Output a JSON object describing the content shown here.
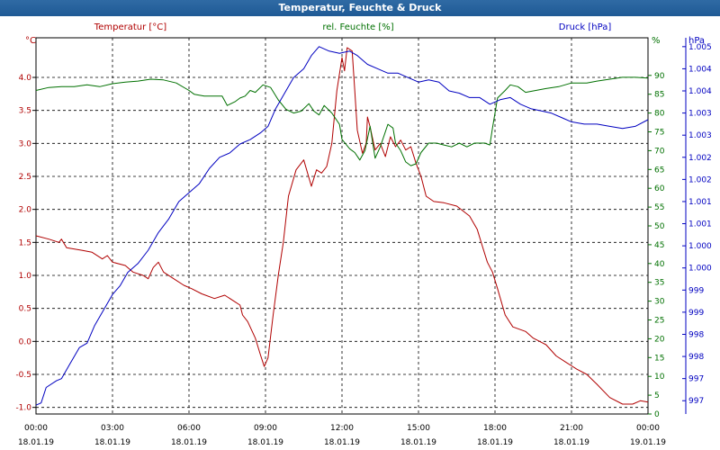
{
  "window_title": "Temperatur, Feuchte & Druck",
  "chart_data": {
    "type": "line",
    "title": "Temperatur, Feuchte & Druck",
    "colors": {
      "temp": "#b00000",
      "hum": "#007000",
      "press": "#0000c0",
      "grid": "#000000"
    },
    "axes": {
      "temp": {
        "label": "Temperatur [°C]",
        "unit": "°C",
        "range": [
          -1.1,
          4.6
        ],
        "ticks": [
          {
            "v": 4.0,
            "t": "4.0"
          },
          {
            "v": 3.5,
            "t": "3.5"
          },
          {
            "v": 3.0,
            "t": "3.0"
          },
          {
            "v": 2.5,
            "t": "2.5"
          },
          {
            "v": 2.0,
            "t": "2.0"
          },
          {
            "v": 1.5,
            "t": "1.5"
          },
          {
            "v": 1.0,
            "t": "1.0"
          },
          {
            "v": 0.5,
            "t": "0.5"
          },
          {
            "v": 0.0,
            "t": "0.0"
          },
          {
            "v": -0.5,
            "t": "-0.5"
          },
          {
            "v": -1.0,
            "t": "-1.0"
          }
        ]
      },
      "hum": {
        "label": "rel. Feuchte [%]",
        "unit": "%",
        "range": [
          0,
          100
        ],
        "ticks": [
          {
            "v": 90,
            "t": "90"
          },
          {
            "v": 85,
            "t": "85"
          },
          {
            "v": 80,
            "t": "80"
          },
          {
            "v": 75,
            "t": "75"
          },
          {
            "v": 70,
            "t": "70"
          },
          {
            "v": 65,
            "t": "65"
          },
          {
            "v": 60,
            "t": "60"
          },
          {
            "v": 55,
            "t": "55"
          },
          {
            "v": 50,
            "t": "50"
          },
          {
            "v": 45,
            "t": "45"
          },
          {
            "v": 40,
            "t": "40"
          },
          {
            "v": 35,
            "t": "35"
          },
          {
            "v": 30,
            "t": "30"
          },
          {
            "v": 25,
            "t": "25"
          },
          {
            "v": 20,
            "t": "20"
          },
          {
            "v": 15,
            "t": "15"
          },
          {
            "v": 10,
            "t": "10"
          },
          {
            "v": 5,
            "t": "5"
          },
          {
            "v": 0,
            "t": "0"
          }
        ]
      },
      "press": {
        "label": "Druck [hPa]",
        "unit": "hPa",
        "range": [
          996.7,
          1005.2
        ],
        "ticks": [
          {
            "v": 1005.0,
            "t": "1.005"
          },
          {
            "v": 1004.5,
            "t": "1.004"
          },
          {
            "v": 1004.0,
            "t": "1.004"
          },
          {
            "v": 1003.5,
            "t": "1.003"
          },
          {
            "v": 1003.0,
            "t": "1.003"
          },
          {
            "v": 1002.5,
            "t": "1.002"
          },
          {
            "v": 1002.0,
            "t": "1.002"
          },
          {
            "v": 1001.5,
            "t": "1.001"
          },
          {
            "v": 1001.0,
            "t": "1.001"
          },
          {
            "v": 1000.5,
            "t": "1.000"
          },
          {
            "v": 1000.0,
            "t": "1.000"
          },
          {
            "v": 999.5,
            "t": "999"
          },
          {
            "v": 999.0,
            "t": "999"
          },
          {
            "v": 998.5,
            "t": "998"
          },
          {
            "v": 998.0,
            "t": "998"
          },
          {
            "v": 997.5,
            "t": "997"
          },
          {
            "v": 997.0,
            "t": "997"
          }
        ]
      }
    },
    "x_range": [
      0,
      24
    ],
    "x_ticks": [
      {
        "v": 0,
        "time": "00:00",
        "date": "18.01.19"
      },
      {
        "v": 3,
        "time": "03:00",
        "date": "18.01.19"
      },
      {
        "v": 6,
        "time": "06:00",
        "date": "18.01.19"
      },
      {
        "v": 9,
        "time": "09:00",
        "date": "18.01.19"
      },
      {
        "v": 12,
        "time": "12:00",
        "date": "18.01.19"
      },
      {
        "v": 15,
        "time": "15:00",
        "date": "18.01.19"
      },
      {
        "v": 18,
        "time": "18:00",
        "date": "18.01.19"
      },
      {
        "v": 21,
        "time": "21:00",
        "date": "18.01.19"
      },
      {
        "v": 24,
        "time": "00:00",
        "date": "19.01.19"
      }
    ],
    "series": [
      {
        "name": "Temperatur [°C]",
        "axis": "temp",
        "color": "#b00000",
        "points": [
          [
            0,
            1.6
          ],
          [
            0.5,
            1.55
          ],
          [
            0.9,
            1.5
          ],
          [
            1.0,
            1.55
          ],
          [
            1.2,
            1.42
          ],
          [
            1.8,
            1.38
          ],
          [
            2.2,
            1.35
          ],
          [
            2.6,
            1.25
          ],
          [
            2.8,
            1.3
          ],
          [
            3.0,
            1.2
          ],
          [
            3.5,
            1.15
          ],
          [
            3.8,
            1.05
          ],
          [
            4.2,
            1.0
          ],
          [
            4.4,
            0.95
          ],
          [
            4.6,
            1.12
          ],
          [
            4.8,
            1.2
          ],
          [
            5.0,
            1.05
          ],
          [
            5.4,
            0.95
          ],
          [
            5.8,
            0.85
          ],
          [
            6.1,
            0.8
          ],
          [
            6.5,
            0.72
          ],
          [
            7.0,
            0.65
          ],
          [
            7.4,
            0.7
          ],
          [
            7.8,
            0.6
          ],
          [
            8.0,
            0.55
          ],
          [
            8.1,
            0.4
          ],
          [
            8.3,
            0.3
          ],
          [
            8.6,
            0.05
          ],
          [
            8.8,
            -0.2
          ],
          [
            8.95,
            -0.38
          ],
          [
            9.1,
            -0.25
          ],
          [
            9.3,
            0.4
          ],
          [
            9.5,
            1.0
          ],
          [
            9.7,
            1.5
          ],
          [
            9.9,
            2.2
          ],
          [
            10.2,
            2.6
          ],
          [
            10.5,
            2.75
          ],
          [
            10.8,
            2.35
          ],
          [
            11.0,
            2.6
          ],
          [
            11.2,
            2.55
          ],
          [
            11.4,
            2.65
          ],
          [
            11.6,
            3.0
          ],
          [
            11.8,
            3.8
          ],
          [
            12.0,
            4.3
          ],
          [
            12.1,
            4.1
          ],
          [
            12.2,
            4.45
          ],
          [
            12.4,
            4.4
          ],
          [
            12.5,
            3.8
          ],
          [
            12.6,
            3.2
          ],
          [
            12.8,
            2.85
          ],
          [
            12.95,
            3.0
          ],
          [
            13.0,
            3.4
          ],
          [
            13.1,
            3.25
          ],
          [
            13.3,
            2.9
          ],
          [
            13.5,
            3.0
          ],
          [
            13.7,
            2.8
          ],
          [
            13.9,
            3.1
          ],
          [
            14.1,
            2.95
          ],
          [
            14.3,
            3.05
          ],
          [
            14.5,
            2.9
          ],
          [
            14.7,
            2.95
          ],
          [
            14.9,
            2.7
          ],
          [
            15.1,
            2.5
          ],
          [
            15.3,
            2.2
          ],
          [
            15.6,
            2.12
          ],
          [
            16.0,
            2.1
          ],
          [
            16.5,
            2.05
          ],
          [
            17.0,
            1.9
          ],
          [
            17.3,
            1.7
          ],
          [
            17.5,
            1.45
          ],
          [
            17.7,
            1.2
          ],
          [
            17.9,
            1.05
          ],
          [
            18.1,
            0.8
          ],
          [
            18.4,
            0.4
          ],
          [
            18.7,
            0.22
          ],
          [
            19.2,
            0.15
          ],
          [
            19.5,
            0.05
          ],
          [
            20.0,
            -0.05
          ],
          [
            20.4,
            -0.22
          ],
          [
            20.8,
            -0.32
          ],
          [
            21.2,
            -0.42
          ],
          [
            21.6,
            -0.5
          ],
          [
            22.0,
            -0.65
          ],
          [
            22.5,
            -0.85
          ],
          [
            23.0,
            -0.95
          ],
          [
            23.4,
            -0.95
          ],
          [
            23.7,
            -0.9
          ],
          [
            24.0,
            -0.92
          ]
        ]
      },
      {
        "name": "rel. Feuchte [%]",
        "axis": "hum",
        "color": "#007000",
        "points": [
          [
            0,
            86
          ],
          [
            0.5,
            86.8
          ],
          [
            1.0,
            87
          ],
          [
            1.5,
            87
          ],
          [
            2.0,
            87.5
          ],
          [
            2.5,
            87
          ],
          [
            3.0,
            87.8
          ],
          [
            3.5,
            88.2
          ],
          [
            4.0,
            88.5
          ],
          [
            4.5,
            89
          ],
          [
            5.0,
            88.8
          ],
          [
            5.5,
            88
          ],
          [
            6.0,
            86
          ],
          [
            6.2,
            85
          ],
          [
            6.6,
            84.5
          ],
          [
            7.0,
            84.5
          ],
          [
            7.3,
            84.5
          ],
          [
            7.5,
            82
          ],
          [
            7.8,
            83
          ],
          [
            8.0,
            84
          ],
          [
            8.2,
            84.5
          ],
          [
            8.4,
            86
          ],
          [
            8.6,
            85.5
          ],
          [
            8.9,
            87.5
          ],
          [
            9.2,
            86.8
          ],
          [
            9.5,
            83.5
          ],
          [
            9.8,
            81
          ],
          [
            10.1,
            80
          ],
          [
            10.4,
            80.5
          ],
          [
            10.7,
            82.5
          ],
          [
            10.9,
            80.5
          ],
          [
            11.1,
            79.5
          ],
          [
            11.3,
            82
          ],
          [
            11.6,
            80
          ],
          [
            11.9,
            77
          ],
          [
            12.0,
            73
          ],
          [
            12.3,
            70.5
          ],
          [
            12.5,
            69.5
          ],
          [
            12.7,
            67.5
          ],
          [
            12.9,
            70
          ],
          [
            13.1,
            76.5
          ],
          [
            13.3,
            68
          ],
          [
            13.5,
            71
          ],
          [
            13.8,
            77
          ],
          [
            14.0,
            76
          ],
          [
            14.1,
            72
          ],
          [
            14.3,
            70
          ],
          [
            14.5,
            67
          ],
          [
            14.7,
            66
          ],
          [
            14.9,
            66.5
          ],
          [
            15.1,
            69.5
          ],
          [
            15.4,
            72
          ],
          [
            15.7,
            72
          ],
          [
            16.0,
            71.5
          ],
          [
            16.3,
            71
          ],
          [
            16.6,
            72
          ],
          [
            16.9,
            71
          ],
          [
            17.2,
            72
          ],
          [
            17.6,
            72
          ],
          [
            17.8,
            71.5
          ],
          [
            17.9,
            76
          ],
          [
            18.1,
            84
          ],
          [
            18.4,
            86
          ],
          [
            18.6,
            87.5
          ],
          [
            18.9,
            87
          ],
          [
            19.2,
            85.5
          ],
          [
            19.6,
            86
          ],
          [
            20.0,
            86.5
          ],
          [
            20.5,
            87
          ],
          [
            21.0,
            88
          ],
          [
            21.6,
            88
          ],
          [
            22.0,
            88.5
          ],
          [
            22.5,
            89
          ],
          [
            23.0,
            89.5
          ],
          [
            23.5,
            89.5
          ],
          [
            24.0,
            89.3
          ]
        ]
      },
      {
        "name": "Druck [hPa]",
        "axis": "press",
        "color": "#0000c0",
        "points": [
          [
            0,
            996.9
          ],
          [
            0.2,
            996.95
          ],
          [
            0.4,
            997.3
          ],
          [
            0.8,
            997.45
          ],
          [
            1.0,
            997.5
          ],
          [
            1.3,
            997.8
          ],
          [
            1.7,
            998.2
          ],
          [
            2.0,
            998.3
          ],
          [
            2.3,
            998.7
          ],
          [
            2.7,
            999.1
          ],
          [
            3.0,
            999.4
          ],
          [
            3.3,
            999.6
          ],
          [
            3.6,
            999.9
          ],
          [
            4.0,
            1000.1
          ],
          [
            4.4,
            1000.4
          ],
          [
            4.8,
            1000.8
          ],
          [
            5.2,
            1001.1
          ],
          [
            5.6,
            1001.5
          ],
          [
            6.0,
            1001.7
          ],
          [
            6.4,
            1001.9
          ],
          [
            6.8,
            1002.25
          ],
          [
            7.2,
            1002.5
          ],
          [
            7.6,
            1002.6
          ],
          [
            8.0,
            1002.8
          ],
          [
            8.4,
            1002.9
          ],
          [
            8.8,
            1003.05
          ],
          [
            9.1,
            1003.2
          ],
          [
            9.4,
            1003.6
          ],
          [
            9.8,
            1004.0
          ],
          [
            10.1,
            1004.3
          ],
          [
            10.5,
            1004.5
          ],
          [
            10.8,
            1004.8
          ],
          [
            11.1,
            1005.0
          ],
          [
            11.5,
            1004.9
          ],
          [
            11.9,
            1004.85
          ],
          [
            12.3,
            1004.9
          ],
          [
            12.6,
            1004.8
          ],
          [
            13.0,
            1004.6
          ],
          [
            13.4,
            1004.5
          ],
          [
            13.8,
            1004.4
          ],
          [
            14.2,
            1004.4
          ],
          [
            14.6,
            1004.3
          ],
          [
            15.0,
            1004.2
          ],
          [
            15.4,
            1004.25
          ],
          [
            15.8,
            1004.2
          ],
          [
            16.2,
            1004.0
          ],
          [
            16.6,
            1003.95
          ],
          [
            17.0,
            1003.85
          ],
          [
            17.4,
            1003.85
          ],
          [
            17.8,
            1003.7
          ],
          [
            18.2,
            1003.8
          ],
          [
            18.6,
            1003.85
          ],
          [
            19.0,
            1003.7
          ],
          [
            19.4,
            1003.6
          ],
          [
            19.8,
            1003.55
          ],
          [
            20.2,
            1003.5
          ],
          [
            20.6,
            1003.4
          ],
          [
            21.0,
            1003.3
          ],
          [
            21.5,
            1003.25
          ],
          [
            22.0,
            1003.25
          ],
          [
            22.5,
            1003.2
          ],
          [
            23.0,
            1003.15
          ],
          [
            23.5,
            1003.2
          ],
          [
            24.0,
            1003.35
          ]
        ]
      }
    ]
  }
}
